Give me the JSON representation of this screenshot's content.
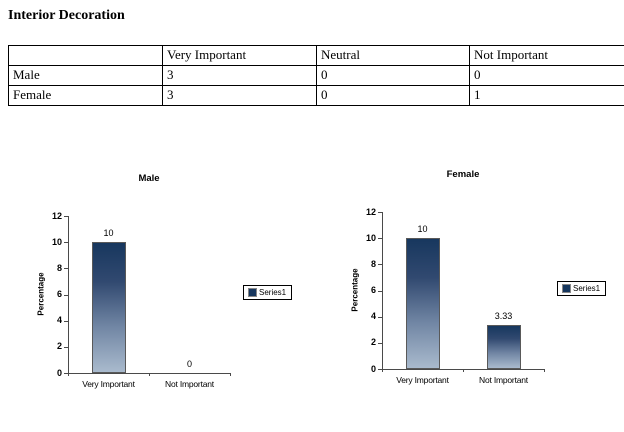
{
  "page_title": "Interior Decoration",
  "table": {
    "columns": [
      "",
      "Very Important",
      "Neutral",
      "Not Important"
    ],
    "rows": [
      {
        "label": "Male",
        "values": [
          "3",
          "0",
          "0"
        ]
      },
      {
        "label": "Female",
        "values": [
          "3",
          "0",
          "1"
        ]
      }
    ]
  },
  "colors": {
    "bar_gradient_top": "#17375e",
    "bar_gradient_bottom": "#a9bacd",
    "bar_border": "#595959",
    "axis_line": "#4a4a4a",
    "legend_border": "#000000"
  },
  "chart_data": [
    {
      "type": "bar",
      "title": "Male",
      "categories": [
        "Very Important",
        "Not Important"
      ],
      "values": [
        10,
        0
      ],
      "data_labels": [
        "10",
        "0"
      ],
      "xlabel": "",
      "ylabel": "Percentage",
      "ylim": [
        0,
        12
      ],
      "yticks": [
        0,
        2,
        4,
        6,
        8,
        10,
        12
      ],
      "grid": false,
      "legend_position": "right",
      "series": [
        {
          "name": "Series1",
          "values": [
            10,
            0
          ]
        }
      ]
    },
    {
      "type": "bar",
      "title": "Female",
      "categories": [
        "Very Important",
        "Not Important"
      ],
      "values": [
        10,
        3.33
      ],
      "data_labels": [
        "10",
        "3.33"
      ],
      "xlabel": "",
      "ylabel": "Percentage",
      "ylim": [
        0,
        12
      ],
      "yticks": [
        0,
        2,
        4,
        6,
        8,
        10,
        12
      ],
      "grid": false,
      "legend_position": "right",
      "series": [
        {
          "name": "Series1",
          "values": [
            10,
            3.33
          ]
        }
      ]
    }
  ]
}
